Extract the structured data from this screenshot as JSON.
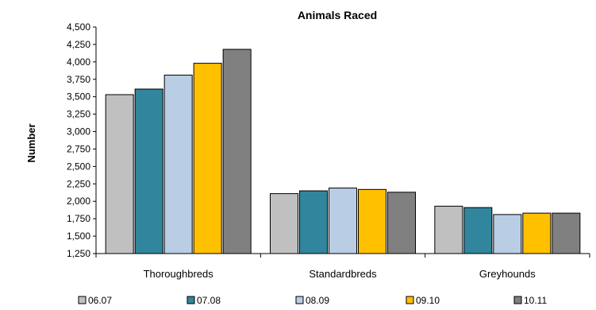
{
  "chart_data": {
    "type": "bar",
    "title": "Animals Raced",
    "xlabel": "",
    "ylabel": "Number",
    "ylim": [
      1250,
      4500
    ],
    "yticks": [
      1250,
      1500,
      1750,
      2000,
      2250,
      2500,
      2750,
      3000,
      3250,
      3500,
      3750,
      4000,
      4250,
      4500
    ],
    "ytick_labels": [
      "1,250",
      "1,500",
      "1,750",
      "2,000",
      "2,250",
      "2,500",
      "2,750",
      "3,000",
      "3,250",
      "3,500",
      "3,750",
      "4,000",
      "4,250",
      "4,500"
    ],
    "grid": false,
    "legend_position": "bottom",
    "categories": [
      "Thoroughbreds",
      "Standardbreds",
      "Greyhounds"
    ],
    "series": [
      {
        "name": "06.07",
        "color": "#c0c0c0",
        "values": [
          3530,
          2110,
          1930
        ]
      },
      {
        "name": "07.08",
        "color": "#31859c",
        "values": [
          3610,
          2150,
          1910
        ]
      },
      {
        "name": "08.09",
        "color": "#b9cde5",
        "values": [
          3810,
          2190,
          1810
        ]
      },
      {
        "name": "09.10",
        "color": "#ffc000",
        "values": [
          3980,
          2170,
          1830
        ]
      },
      {
        "name": "10.11",
        "color": "#808080",
        "values": [
          4180,
          2130,
          1830
        ]
      }
    ]
  }
}
